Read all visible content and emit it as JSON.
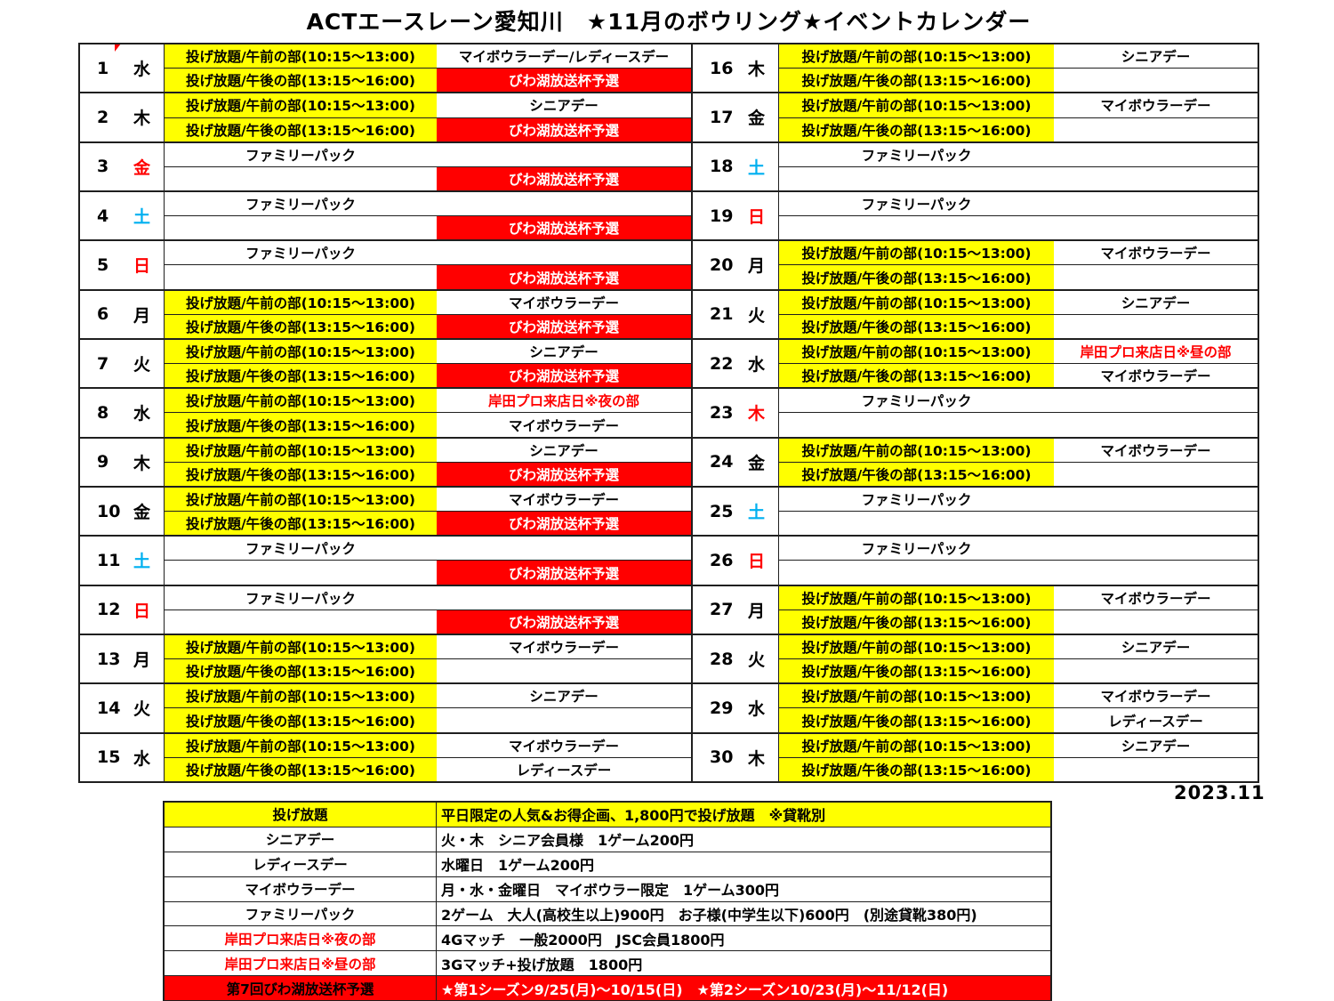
{
  "title": "ACTエースレーン愛知川　★11月のボウリング★イベントカレンダー",
  "footer_date": "2023.11",
  "colors": {
    "yellow": "#FFFF00",
    "red": "#FF0000",
    "weekday_black": "#000000",
    "weekday_red": "#FF0000",
    "weekday_blue": "#00B0F0"
  },
  "slots": {
    "am": "投げ放題/午前の部(10:15～13:00)",
    "pm": "投げ放題/午後の部(13:15～16:00)",
    "family": "ファミリーパック"
  },
  "days": [
    {
      "num": "1",
      "dow": "水",
      "dow_color": "k",
      "rows": [
        {
          "slot": "am",
          "event": "マイボウラーデー/レディースデー",
          "style": "plain"
        },
        {
          "slot": "pm",
          "event": "びわ湖放送杯予選",
          "style": "red-bg"
        }
      ]
    },
    {
      "num": "2",
      "dow": "木",
      "dow_color": "k",
      "rows": [
        {
          "slot": "am",
          "event": "シニアデー",
          "style": "plain"
        },
        {
          "slot": "pm",
          "event": "びわ湖放送杯予選",
          "style": "red-bg"
        }
      ]
    },
    {
      "num": "3",
      "dow": "金",
      "dow_color": "r",
      "rows": [
        {
          "slot": "family"
        },
        {
          "slot": "none",
          "event": "びわ湖放送杯予選",
          "style": "red-bg"
        }
      ]
    },
    {
      "num": "4",
      "dow": "土",
      "dow_color": "b",
      "rows": [
        {
          "slot": "family"
        },
        {
          "slot": "none",
          "event": "びわ湖放送杯予選",
          "style": "red-bg"
        }
      ]
    },
    {
      "num": "5",
      "dow": "日",
      "dow_color": "r",
      "rows": [
        {
          "slot": "family"
        },
        {
          "slot": "none",
          "event": "びわ湖放送杯予選",
          "style": "red-bg"
        }
      ]
    },
    {
      "num": "6",
      "dow": "月",
      "dow_color": "k",
      "rows": [
        {
          "slot": "am",
          "event": "マイボウラーデー",
          "style": "plain"
        },
        {
          "slot": "pm",
          "event": "びわ湖放送杯予選",
          "style": "red-bg"
        }
      ]
    },
    {
      "num": "7",
      "dow": "火",
      "dow_color": "k",
      "rows": [
        {
          "slot": "am",
          "event": "シニアデー",
          "style": "plain"
        },
        {
          "slot": "pm",
          "event": "びわ湖放送杯予選",
          "style": "red-bg"
        }
      ]
    },
    {
      "num": "8",
      "dow": "水",
      "dow_color": "k",
      "rows": [
        {
          "slot": "am",
          "event": "岸田プロ来店日※夜の部",
          "style": "red-text"
        },
        {
          "slot": "pm",
          "event": "マイボウラーデー",
          "style": "plain"
        }
      ]
    },
    {
      "num": "9",
      "dow": "木",
      "dow_color": "k",
      "rows": [
        {
          "slot": "am",
          "event": "シニアデー",
          "style": "plain"
        },
        {
          "slot": "pm",
          "event": "びわ湖放送杯予選",
          "style": "red-bg"
        }
      ]
    },
    {
      "num": "10",
      "dow": "金",
      "dow_color": "k",
      "rows": [
        {
          "slot": "am",
          "event": "マイボウラーデー",
          "style": "plain"
        },
        {
          "slot": "pm",
          "event": "びわ湖放送杯予選",
          "style": "red-bg"
        }
      ]
    },
    {
      "num": "11",
      "dow": "土",
      "dow_color": "b",
      "rows": [
        {
          "slot": "family"
        },
        {
          "slot": "none",
          "event": "びわ湖放送杯予選",
          "style": "red-bg"
        }
      ]
    },
    {
      "num": "12",
      "dow": "日",
      "dow_color": "r",
      "rows": [
        {
          "slot": "family"
        },
        {
          "slot": "none",
          "event": "びわ湖放送杯予選",
          "style": "red-bg"
        }
      ]
    },
    {
      "num": "13",
      "dow": "月",
      "dow_color": "k",
      "rows": [
        {
          "slot": "am",
          "event": "マイボウラーデー",
          "style": "plain"
        },
        {
          "slot": "pm",
          "event": "",
          "style": "plain"
        }
      ]
    },
    {
      "num": "14",
      "dow": "火",
      "dow_color": "k",
      "rows": [
        {
          "slot": "am",
          "event": "シニアデー",
          "style": "plain"
        },
        {
          "slot": "pm",
          "event": "",
          "style": "plain"
        }
      ]
    },
    {
      "num": "15",
      "dow": "水",
      "dow_color": "k",
      "rows": [
        {
          "slot": "am",
          "event": "マイボウラーデー",
          "style": "plain"
        },
        {
          "slot": "pm",
          "event": "レディースデー",
          "style": "plain"
        }
      ]
    },
    {
      "num": "16",
      "dow": "木",
      "dow_color": "k",
      "rows": [
        {
          "slot": "am",
          "event": "シニアデー",
          "style": "plain"
        },
        {
          "slot": "pm",
          "event": "",
          "style": "plain"
        }
      ]
    },
    {
      "num": "17",
      "dow": "金",
      "dow_color": "k",
      "rows": [
        {
          "slot": "am",
          "event": "マイボウラーデー",
          "style": "plain"
        },
        {
          "slot": "pm",
          "event": "",
          "style": "plain"
        }
      ]
    },
    {
      "num": "18",
      "dow": "土",
      "dow_color": "b",
      "rows": [
        {
          "slot": "family"
        },
        {
          "slot": "none",
          "event": "",
          "style": "plain"
        }
      ]
    },
    {
      "num": "19",
      "dow": "日",
      "dow_color": "r",
      "rows": [
        {
          "slot": "family"
        },
        {
          "slot": "none",
          "event": "",
          "style": "plain"
        }
      ]
    },
    {
      "num": "20",
      "dow": "月",
      "dow_color": "k",
      "rows": [
        {
          "slot": "am",
          "event": "マイボウラーデー",
          "style": "plain"
        },
        {
          "slot": "pm",
          "event": "",
          "style": "plain"
        }
      ]
    },
    {
      "num": "21",
      "dow": "火",
      "dow_color": "k",
      "rows": [
        {
          "slot": "am",
          "event": "シニアデー",
          "style": "plain"
        },
        {
          "slot": "pm",
          "event": "",
          "style": "plain"
        }
      ]
    },
    {
      "num": "22",
      "dow": "水",
      "dow_color": "k",
      "rows": [
        {
          "slot": "am",
          "event": "岸田プロ来店日※昼の部",
          "style": "red-text"
        },
        {
          "slot": "pm",
          "event": "マイボウラーデー",
          "style": "plain"
        }
      ]
    },
    {
      "num": "23",
      "dow": "木",
      "dow_color": "r",
      "rows": [
        {
          "slot": "family"
        },
        {
          "slot": "none",
          "event": "",
          "style": "plain"
        }
      ]
    },
    {
      "num": "24",
      "dow": "金",
      "dow_color": "k",
      "rows": [
        {
          "slot": "am",
          "event": "マイボウラーデー",
          "style": "plain"
        },
        {
          "slot": "pm",
          "event": "",
          "style": "plain"
        }
      ]
    },
    {
      "num": "25",
      "dow": "土",
      "dow_color": "b",
      "rows": [
        {
          "slot": "family"
        },
        {
          "slot": "none",
          "event": "",
          "style": "plain"
        }
      ]
    },
    {
      "num": "26",
      "dow": "日",
      "dow_color": "r",
      "rows": [
        {
          "slot": "family"
        },
        {
          "slot": "none",
          "event": "",
          "style": "plain"
        }
      ]
    },
    {
      "num": "27",
      "dow": "月",
      "dow_color": "k",
      "rows": [
        {
          "slot": "am",
          "event": "マイボウラーデー",
          "style": "plain"
        },
        {
          "slot": "pm",
          "event": "",
          "style": "plain"
        }
      ]
    },
    {
      "num": "28",
      "dow": "火",
      "dow_color": "k",
      "rows": [
        {
          "slot": "am",
          "event": "シニアデー",
          "style": "plain"
        },
        {
          "slot": "pm",
          "event": "",
          "style": "plain"
        }
      ]
    },
    {
      "num": "29",
      "dow": "水",
      "dow_color": "k",
      "rows": [
        {
          "slot": "am",
          "event": "マイボウラーデー",
          "style": "plain"
        },
        {
          "slot": "pm",
          "event": "レディースデー",
          "style": "plain"
        }
      ]
    },
    {
      "num": "30",
      "dow": "木",
      "dow_color": "k",
      "rows": [
        {
          "slot": "am",
          "event": "シニアデー",
          "style": "plain"
        },
        {
          "slot": "pm",
          "event": "",
          "style": "plain"
        }
      ]
    }
  ],
  "legend": {
    "rows": [
      {
        "name": "投げ放題",
        "desc": "平日限定の人気&お得企画、1,800円で投げ放題　※貸靴別",
        "row_style": "yellow",
        "name_color": "black"
      },
      {
        "name": "シニアデー",
        "desc": "火・木　シニア会員様　1ゲーム200円",
        "row_style": "white",
        "name_color": "black"
      },
      {
        "name": "レディースデー",
        "desc": "水曜日　1ゲーム200円",
        "row_style": "white",
        "name_color": "black"
      },
      {
        "name": "マイボウラーデー",
        "desc": "月・水・金曜日　マイボウラー限定　1ゲーム300円",
        "row_style": "white",
        "name_color": "black"
      },
      {
        "name": "ファミリーパック",
        "desc": "2ゲーム　大人(高校生以上)900円　お子様(中学生以下)600円　(別途貸靴380円)",
        "row_style": "white",
        "name_color": "black"
      },
      {
        "name": "岸田プロ来店日※夜の部",
        "desc": "4Gマッチ　一般2000円　JSC会員1800円",
        "row_style": "white",
        "name_color": "red"
      },
      {
        "name": "岸田プロ来店日※昼の部",
        "desc": "3Gマッチ+投げ放題　1800円",
        "row_style": "white",
        "name_color": "red"
      },
      {
        "name": "第7回びわ湖放送杯予選",
        "desc": "★第1シーズン9/25(月)～10/15(日)　★第2シーズン10/23(月)～11/12(日)",
        "row_style": "red",
        "name_color": "black"
      }
    ]
  }
}
